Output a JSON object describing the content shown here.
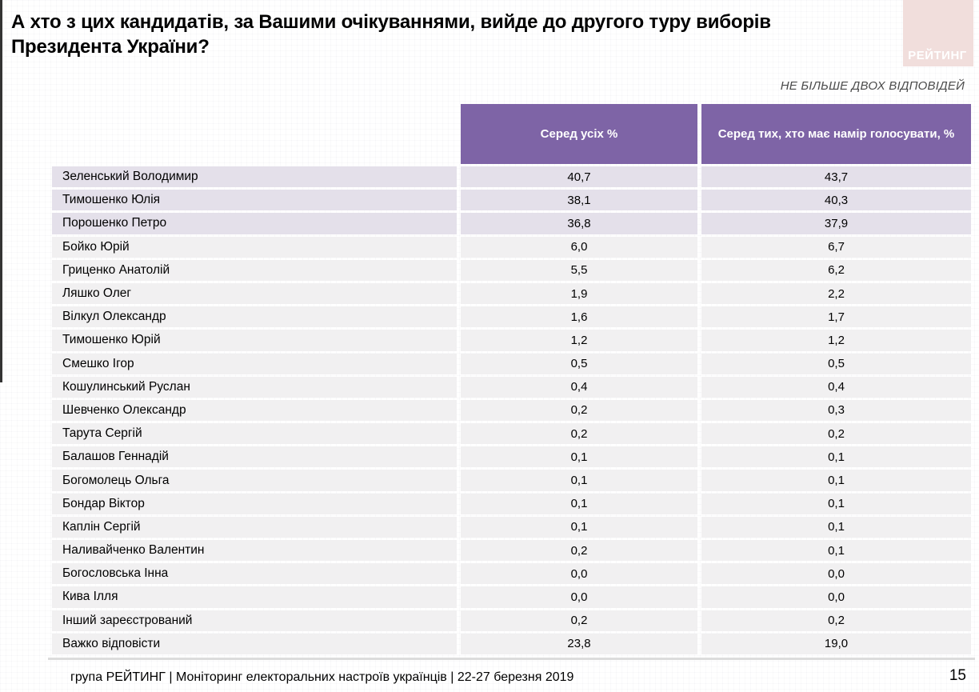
{
  "header": {
    "title_line1": "А хто з цих кандидатів, за Вашими очікуваннями, вийде до другого туру виборів",
    "title_line2": "Президента України?",
    "logo_text": "РЕЙТИНГ",
    "note": "НЕ БІЛЬШЕ ДВОХ ВІДПОВІДЕЙ"
  },
  "table": {
    "col1": "Серед усіх %",
    "col2": "Серед тих, хто має намір голосувати, %"
  },
  "footer": {
    "text": "група РЕЙТИНГ | Моніторинг електоральних настроїв українців | 22-27 березня 2019",
    "page_number": "15"
  },
  "colors": {
    "header_purple": "#7E64A6",
    "highlight_row_lavender": "#E4E0EA",
    "row_gray": "#F1F0F1",
    "logo_pink": "#F1DEDC"
  },
  "chart_data": {
    "type": "table",
    "title": "А хто з цих кандидатів, за Вашими очікуваннями, вийде до другого туру виборів Президента України?",
    "note": "НЕ БІЛЬШЕ ДВОХ ВІДПОВІДЕЙ",
    "columns": [
      "Серед усіх %",
      "Серед тих, хто має намір голосувати, %"
    ],
    "rows": [
      {
        "name": "Зеленський Володимир",
        "all": "40,7",
        "voters": "43,7",
        "highlight": true
      },
      {
        "name": "Тимошенко Юлія",
        "all": "38,1",
        "voters": "40,3",
        "highlight": true
      },
      {
        "name": "Порошенко Петро",
        "all": "36,8",
        "voters": "37,9",
        "highlight": true
      },
      {
        "name": "Бойко Юрій",
        "all": "6,0",
        "voters": "6,7",
        "highlight": false
      },
      {
        "name": "Гриценко Анатолій",
        "all": "5,5",
        "voters": "6,2",
        "highlight": false
      },
      {
        "name": "Ляшко Олег",
        "all": "1,9",
        "voters": "2,2",
        "highlight": false
      },
      {
        "name": "Вілкул Олександр",
        "all": "1,6",
        "voters": "1,7",
        "highlight": false
      },
      {
        "name": "Тимошенко Юрій",
        "all": "1,2",
        "voters": "1,2",
        "highlight": false
      },
      {
        "name": "Смешко Ігор",
        "all": "0,5",
        "voters": "0,5",
        "highlight": false
      },
      {
        "name": "Кошулинський Руслан",
        "all": "0,4",
        "voters": "0,4",
        "highlight": false
      },
      {
        "name": "Шевченко Олександр",
        "all": "0,2",
        "voters": "0,3",
        "highlight": false
      },
      {
        "name": "Тарута Сергій",
        "all": "0,2",
        "voters": "0,2",
        "highlight": false
      },
      {
        "name": "Балашов Геннадій",
        "all": "0,1",
        "voters": "0,1",
        "highlight": false
      },
      {
        "name": "Богомолець Ольга",
        "all": "0,1",
        "voters": "0,1",
        "highlight": false
      },
      {
        "name": "Бондар Віктор",
        "all": "0,1",
        "voters": "0,1",
        "highlight": false
      },
      {
        "name": "Каплін Сергій",
        "all": "0,1",
        "voters": "0,1",
        "highlight": false
      },
      {
        "name": "Наливайченко Валентин",
        "all": "0,2",
        "voters": "0,1",
        "highlight": false
      },
      {
        "name": "Богословська Інна",
        "all": "0,0",
        "voters": "0,0",
        "highlight": false
      },
      {
        "name": "Кива Ілля",
        "all": "0,0",
        "voters": "0,0",
        "highlight": false
      },
      {
        "name": "Інший зареєстрований",
        "all": "0,2",
        "voters": "0,2",
        "highlight": false
      },
      {
        "name": "Важко відповісти",
        "all": "23,8",
        "voters": "19,0",
        "highlight": false
      }
    ]
  }
}
